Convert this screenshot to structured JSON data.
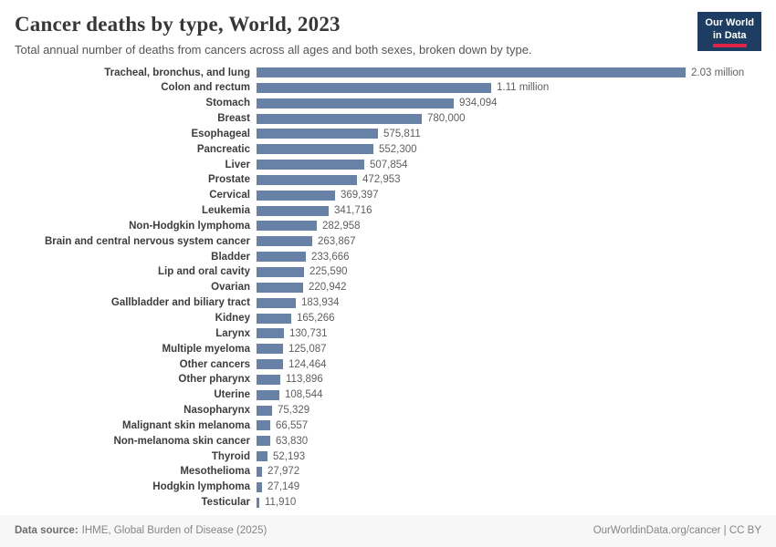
{
  "logo": {
    "line1": "Our World",
    "line2": "in Data"
  },
  "header": {
    "title": "Cancer deaths by type, World, 2023",
    "subtitle": "Total annual number of deaths from cancers across all ages and both sexes, broken down by type."
  },
  "footer": {
    "source_label": "Data source:",
    "source_text": "IHME, Global Burden of Disease (2025)",
    "right_text": "OurWorldinData.org/cancer | CC BY"
  },
  "chart_data": {
    "type": "bar",
    "orientation": "horizontal",
    "title": "Cancer deaths by type, World, 2023",
    "xlabel": "",
    "ylabel": "",
    "xlim": [
      0,
      2030000
    ],
    "grid": false,
    "legend": false,
    "bar_color": "#6882a7",
    "categories": [
      "Tracheal, bronchus, and lung",
      "Colon and rectum",
      "Stomach",
      "Breast",
      "Esophageal",
      "Pancreatic",
      "Liver",
      "Prostate",
      "Cervical",
      "Leukemia",
      "Non-Hodgkin lymphoma",
      "Brain and central nervous system cancer",
      "Bladder",
      "Lip and oral cavity",
      "Ovarian",
      "Gallbladder and biliary tract",
      "Kidney",
      "Larynx",
      "Multiple myeloma",
      "Other cancers",
      "Other pharynx",
      "Uterine",
      "Nasopharynx",
      "Malignant skin melanoma",
      "Non-melanoma skin cancer",
      "Thyroid",
      "Mesothelioma",
      "Hodgkin lymphoma",
      "Testicular"
    ],
    "values": [
      2030000,
      1110000,
      934094,
      780000,
      575811,
      552300,
      507854,
      472953,
      369397,
      341716,
      282958,
      263867,
      233666,
      225590,
      220942,
      183934,
      165266,
      130731,
      125087,
      124464,
      113896,
      108544,
      75329,
      66557,
      63830,
      52193,
      27972,
      27149,
      11910
    ],
    "value_labels": [
      "2.03 million",
      "1.11 million",
      "934,094",
      "780,000",
      "575,811",
      "552,300",
      "507,854",
      "472,953",
      "369,397",
      "341,716",
      "282,958",
      "263,867",
      "233,666",
      "225,590",
      "220,942",
      "183,934",
      "165,266",
      "130,731",
      "125,087",
      "124,464",
      "113,896",
      "108,544",
      "75,329",
      "66,557",
      "63,830",
      "52,193",
      "27,972",
      "27,149",
      "11,910"
    ]
  }
}
